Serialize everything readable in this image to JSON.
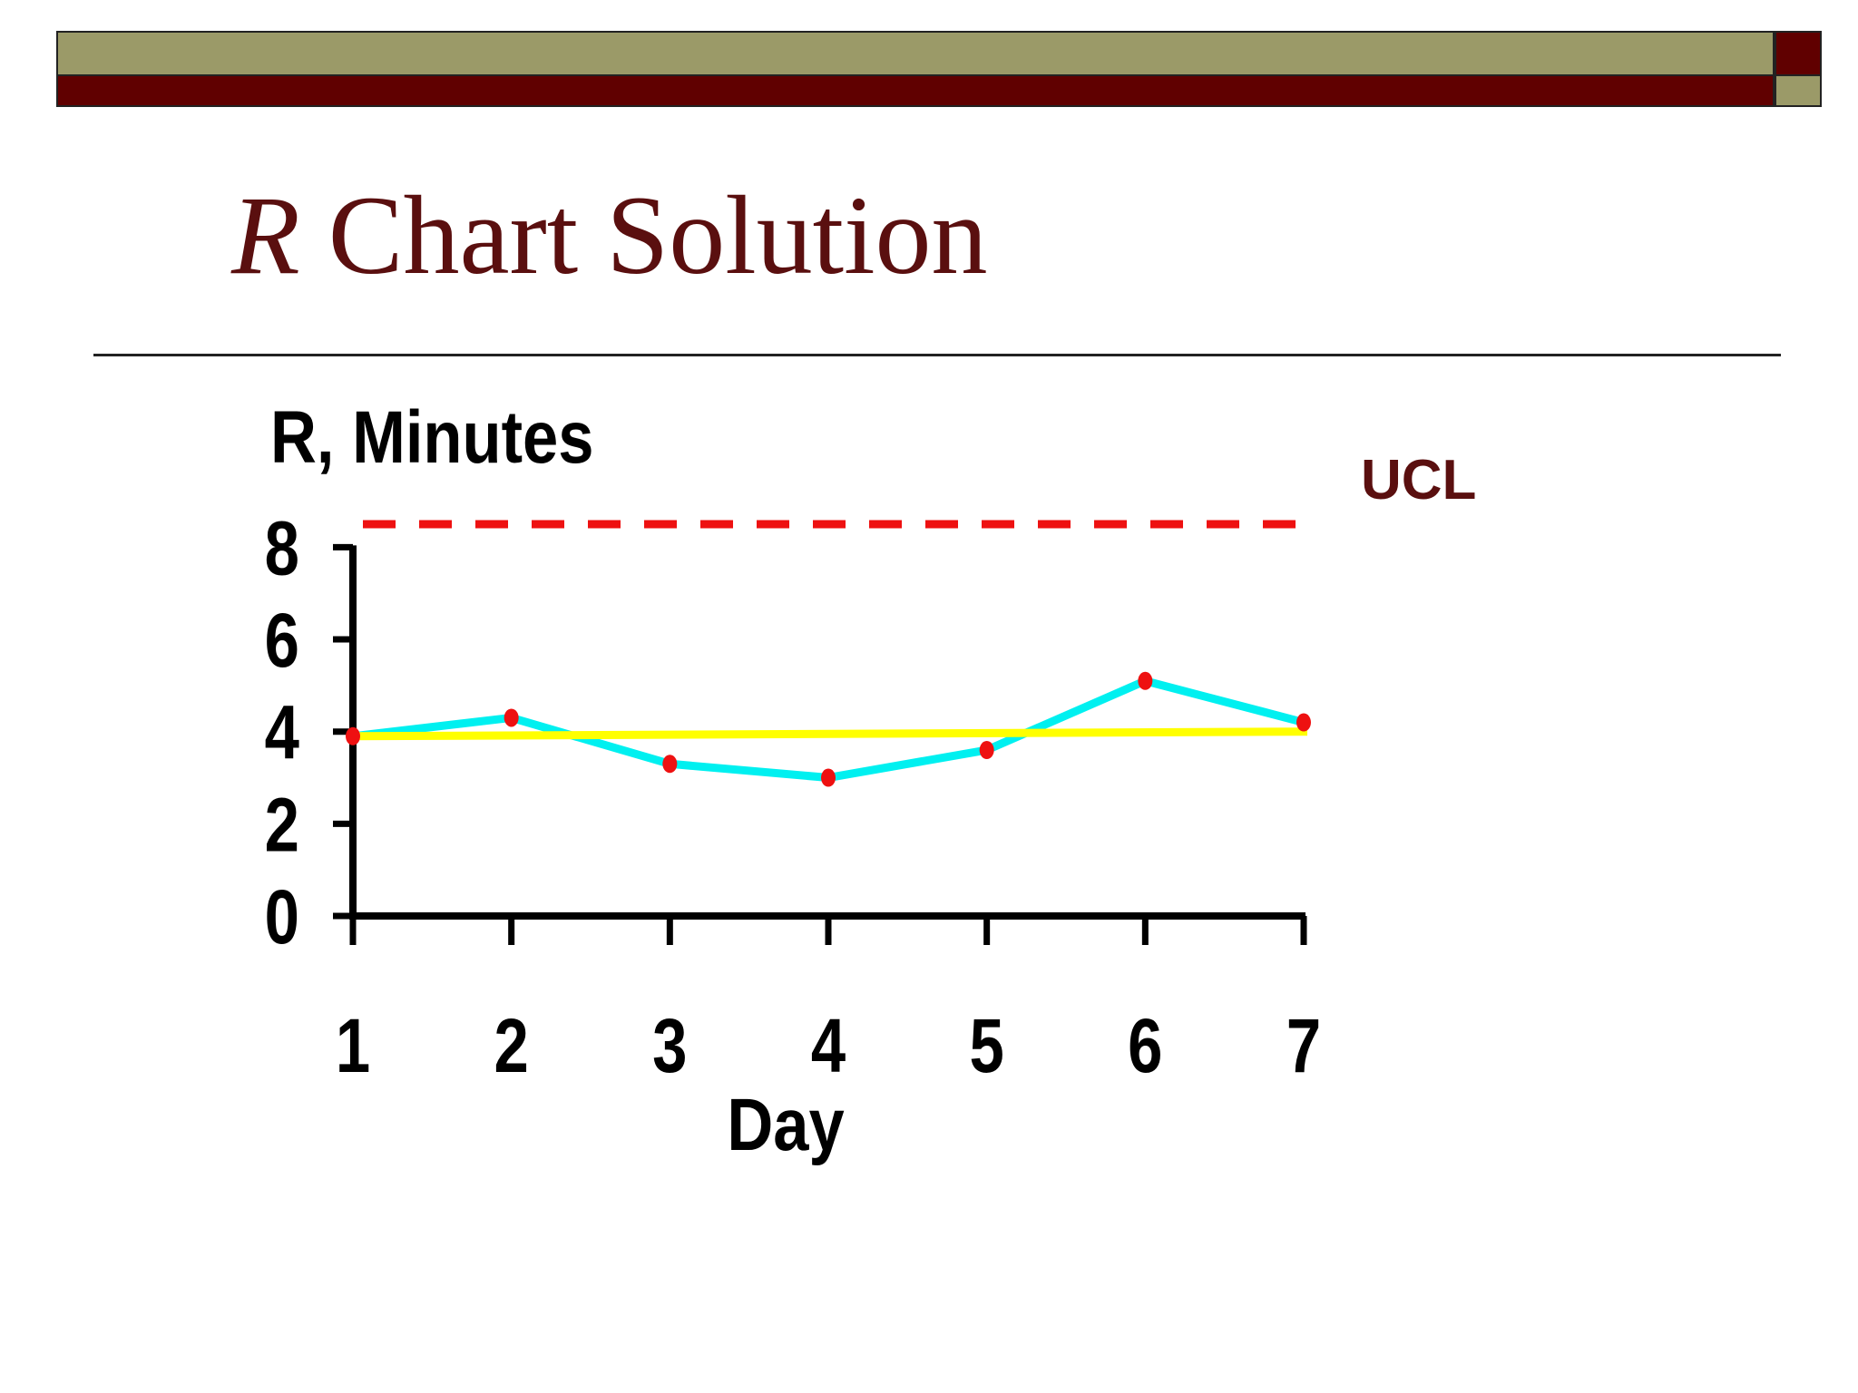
{
  "slide": {
    "title_italic": "R",
    "title_rest": " Chart Solution",
    "colors": {
      "olive": "#9b9a68",
      "maroon": "#600000",
      "title_text": "#5a0f0f"
    }
  },
  "chart_data": {
    "type": "line",
    "ylabel": "R, Minutes",
    "xlabel": "Day",
    "x": [
      1,
      2,
      3,
      4,
      5,
      6,
      7
    ],
    "series": [
      {
        "values": [
          3.9,
          4.3,
          3.3,
          3.0,
          3.6,
          5.1,
          4.2
        ],
        "color": "#00f0f0",
        "marker_color": "#ee1111"
      }
    ],
    "center_line": {
      "values": [
        3.9,
        4.0
      ],
      "color": "#ffff00"
    },
    "ucl": {
      "label": "UCL",
      "value": 8.5,
      "color": "#ee1111",
      "style": "dashed"
    },
    "ylim": [
      0,
      8.5
    ],
    "xlim": [
      1,
      7
    ],
    "yticks": [
      0,
      2,
      4,
      6,
      8
    ],
    "xticks": [
      1,
      2,
      3,
      4,
      5,
      6,
      7
    ],
    "grid": false
  }
}
